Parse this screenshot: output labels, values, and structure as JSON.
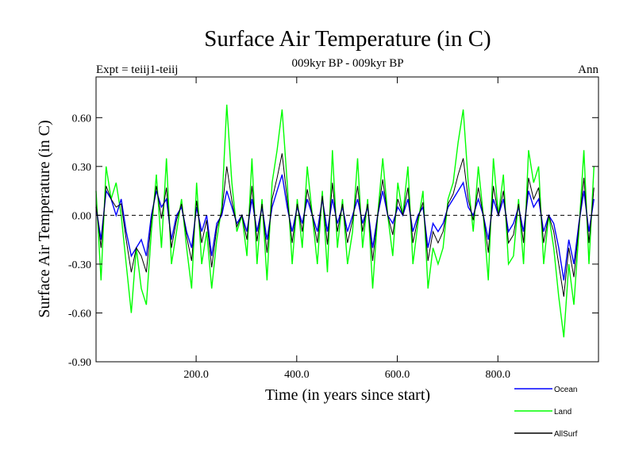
{
  "chart_data": {
    "type": "line",
    "title": "Surface Air Temperature (in C)",
    "subtitle": "009kyr BP - 009kyr BP",
    "left_note": "Expt = teiij1-teiij",
    "right_note": "Ann",
    "xlabel": "Time (in years since start)",
    "ylabel": "Surface Air Temperature (in C)",
    "xlim": [
      1,
      1000
    ],
    "ylim": [
      -0.9,
      0.85
    ],
    "x_ticks": [
      200,
      400,
      600,
      800
    ],
    "x_tick_labels": [
      "200.0",
      "400.0",
      "600.0",
      "800.0"
    ],
    "y_ticks": [
      -0.9,
      -0.6,
      -0.3,
      0.0,
      0.3,
      0.6
    ],
    "y_tick_labels": [
      "-0.90",
      "-0.60",
      "-0.30",
      "0.00",
      "0.30",
      "0.60"
    ],
    "zero_line": true,
    "grid": false,
    "legend_position": "bottom-right",
    "series_sampling": {
      "x_start": 1,
      "x_step": 10
    },
    "series": [
      {
        "name": "Land",
        "color": "#00ff00",
        "values": [
          0.15,
          -0.4,
          0.3,
          0.1,
          0.2,
          0.0,
          -0.3,
          -0.6,
          -0.2,
          -0.45,
          -0.55,
          -0.1,
          0.25,
          -0.2,
          0.35,
          -0.3,
          -0.1,
          0.1,
          -0.2,
          -0.45,
          0.2,
          -0.3,
          -0.1,
          -0.45,
          -0.15,
          0.05,
          0.68,
          0.2,
          -0.1,
          0.0,
          -0.25,
          0.35,
          -0.3,
          0.1,
          -0.4,
          0.2,
          0.4,
          0.65,
          0.2,
          -0.3,
          0.1,
          -0.2,
          0.3,
          0.0,
          -0.3,
          0.15,
          -0.35,
          0.4,
          -0.2,
          0.1,
          -0.3,
          -0.1,
          0.35,
          -0.2,
          0.1,
          -0.45,
          0.0,
          0.35,
          0.0,
          -0.25,
          0.2,
          0.0,
          0.3,
          -0.3,
          -0.05,
          0.15,
          -0.45,
          -0.2,
          -0.3,
          -0.2,
          0.1,
          0.2,
          0.45,
          0.65,
          0.2,
          -0.1,
          0.3,
          0.0,
          -0.4,
          0.35,
          0.0,
          0.25,
          -0.3,
          -0.25,
          0.1,
          -0.3,
          0.4,
          0.2,
          0.3,
          -0.3,
          0.0,
          -0.2,
          -0.5,
          -0.75,
          -0.3,
          -0.55,
          -0.1,
          0.4,
          -0.3,
          0.3
        ]
      },
      {
        "name": "Ocean",
        "color": "#0000ff",
        "values": [
          0.05,
          -0.15,
          0.15,
          0.1,
          0.0,
          0.1,
          -0.1,
          -0.25,
          -0.2,
          -0.15,
          -0.25,
          0.0,
          0.15,
          0.05,
          0.1,
          -0.15,
          0.0,
          0.05,
          -0.1,
          -0.2,
          0.05,
          -0.1,
          0.0,
          -0.25,
          -0.05,
          0.0,
          0.15,
          0.05,
          -0.05,
          0.0,
          -0.1,
          0.1,
          -0.1,
          0.05,
          -0.15,
          0.05,
          0.15,
          0.25,
          0.05,
          -0.1,
          0.05,
          -0.05,
          0.1,
          0.0,
          -0.1,
          0.1,
          -0.1,
          0.1,
          -0.05,
          0.05,
          -0.1,
          0.0,
          0.1,
          -0.05,
          0.05,
          -0.2,
          0.0,
          0.15,
          0.0,
          -0.05,
          0.05,
          0.0,
          0.1,
          -0.1,
          0.0,
          0.05,
          -0.2,
          -0.05,
          -0.1,
          -0.05,
          0.05,
          0.1,
          0.15,
          0.2,
          0.05,
          0.0,
          0.1,
          0.0,
          -0.15,
          0.1,
          0.0,
          0.1,
          -0.1,
          -0.05,
          0.05,
          -0.1,
          0.15,
          0.05,
          0.1,
          -0.1,
          0.0,
          -0.05,
          -0.2,
          -0.4,
          -0.15,
          -0.3,
          -0.05,
          0.15,
          -0.1,
          0.1
        ]
      },
      {
        "name": "AllSurf",
        "color": "#000000",
        "values": [
          0.07,
          -0.2,
          0.18,
          0.1,
          0.05,
          0.07,
          -0.15,
          -0.35,
          -0.2,
          -0.25,
          -0.35,
          -0.03,
          0.18,
          -0.02,
          0.17,
          -0.2,
          -0.03,
          0.07,
          -0.13,
          -0.28,
          0.09,
          -0.17,
          -0.03,
          -0.32,
          -0.08,
          0.02,
          0.3,
          0.09,
          -0.07,
          0.0,
          -0.15,
          0.18,
          -0.16,
          0.07,
          -0.23,
          0.1,
          0.23,
          0.38,
          0.1,
          -0.17,
          0.07,
          -0.1,
          0.16,
          0.0,
          -0.17,
          0.12,
          -0.18,
          0.2,
          -0.1,
          0.07,
          -0.17,
          -0.03,
          0.18,
          -0.1,
          0.07,
          -0.28,
          0.0,
          0.22,
          0.0,
          -0.12,
          0.1,
          0.0,
          0.17,
          -0.17,
          -0.02,
          0.08,
          -0.28,
          -0.1,
          -0.17,
          -0.1,
          0.07,
          0.13,
          0.25,
          0.35,
          0.1,
          -0.03,
          0.17,
          0.0,
          -0.23,
          0.18,
          0.0,
          0.15,
          -0.17,
          -0.12,
          0.07,
          -0.17,
          0.23,
          0.1,
          0.17,
          -0.17,
          0.0,
          -0.1,
          -0.3,
          -0.5,
          -0.2,
          -0.38,
          -0.07,
          0.23,
          -0.17,
          0.17
        ]
      }
    ],
    "legend": [
      {
        "name": "Ocean",
        "color": "#0000ff"
      },
      {
        "name": "Land",
        "color": "#00ff00"
      },
      {
        "name": "AllSurf",
        "color": "#000000"
      }
    ]
  }
}
